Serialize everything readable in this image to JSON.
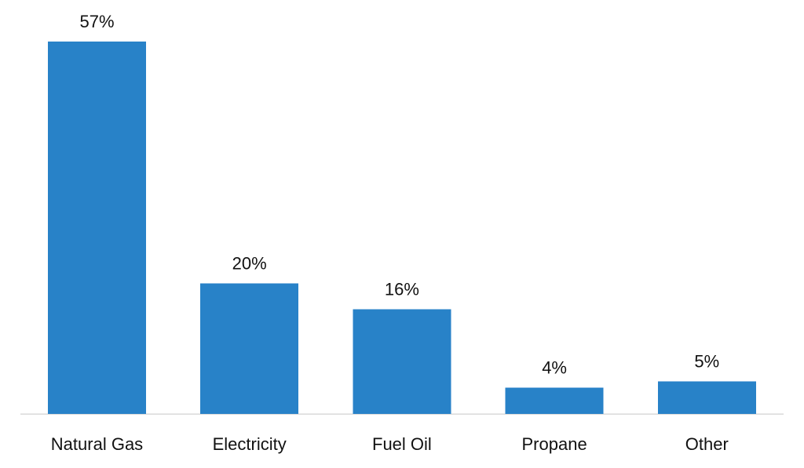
{
  "chart_data": {
    "type": "bar",
    "categories": [
      "Natural Gas",
      "Electricity",
      "Fuel Oil",
      "Propane",
      "Other"
    ],
    "values": [
      57,
      20,
      16,
      4,
      5
    ],
    "data_labels": [
      "57%",
      "20%",
      "16%",
      "4%",
      "5%"
    ],
    "unit": "%",
    "ylim": [
      0,
      57
    ],
    "grid": false,
    "legend": "none",
    "y_axis_visible": false,
    "bar_color": "#2882C8",
    "axis_color": "#D9D9D9",
    "text_color": "#111111"
  }
}
